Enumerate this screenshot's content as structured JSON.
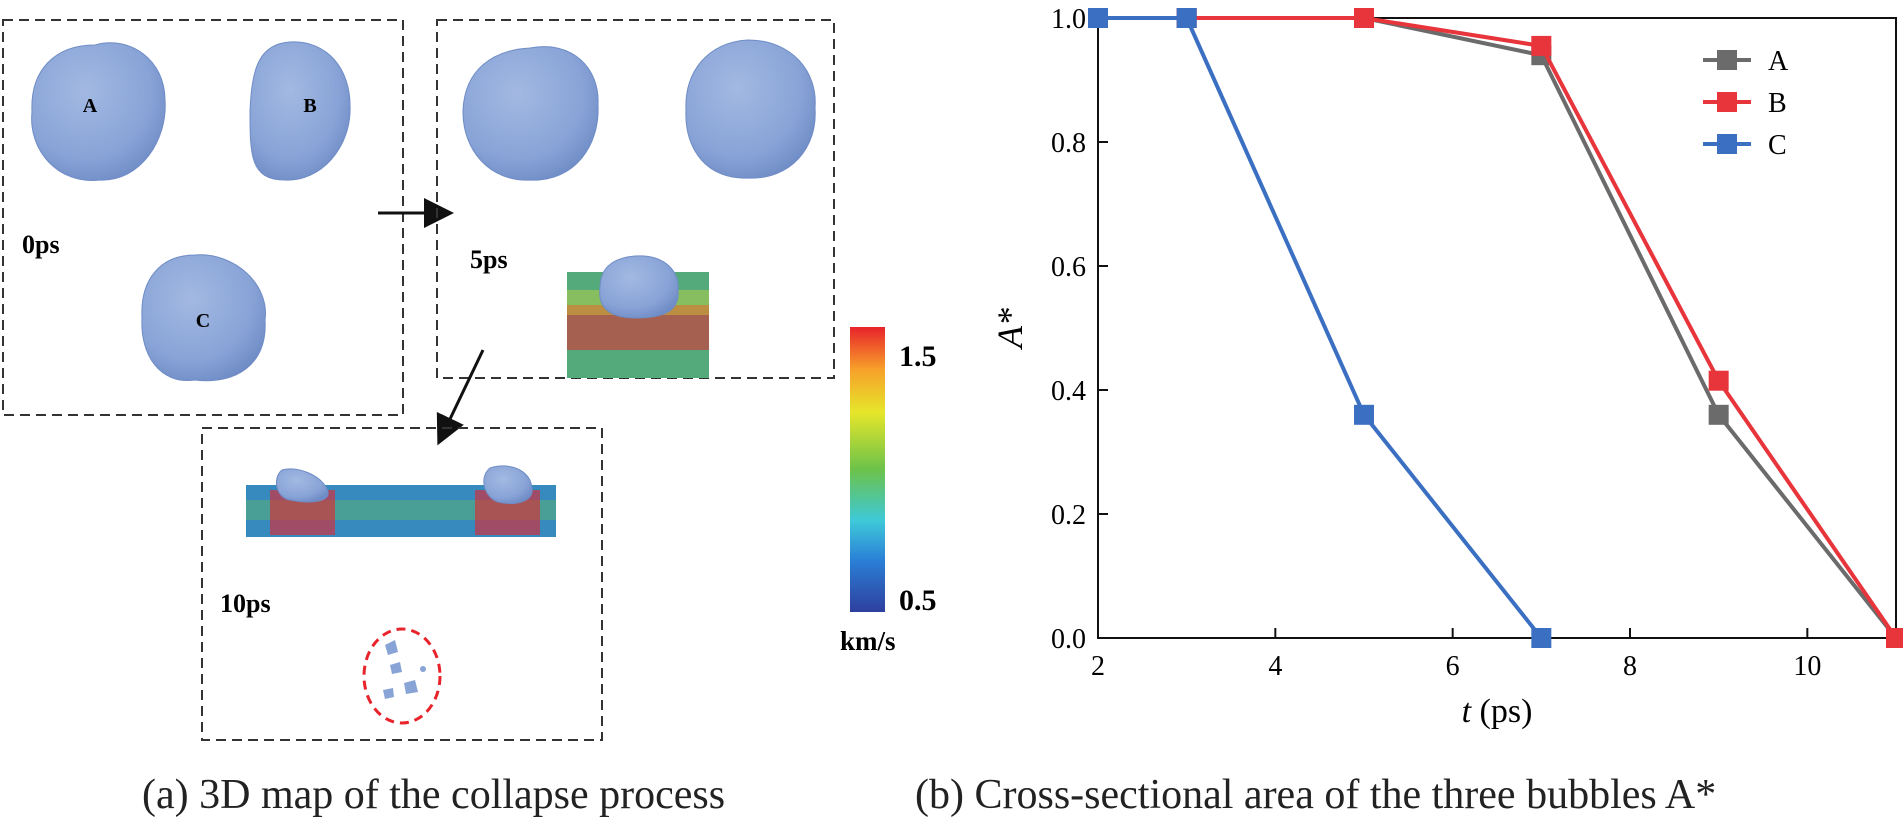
{
  "panel_a": {
    "snapshots": [
      {
        "time": "0ps",
        "bubbles": [
          "A",
          "B",
          "C"
        ]
      },
      {
        "time": "5ps"
      },
      {
        "time": "10ps"
      }
    ],
    "colorbar": {
      "max": "1.5",
      "min": "0.5",
      "unit": "km/s",
      "colors": [
        "#2e3f9e",
        "#2a7fd6",
        "#3ec9d9",
        "#6cc24a",
        "#e6e62a",
        "#f7a12a",
        "#e8232b"
      ]
    },
    "caption": "(a) 3D map of the collapse process",
    "bubble_color": "#88a3d6",
    "highlight_color": "#e8232b"
  },
  "panel_b": {
    "caption": "(b) Cross-sectional area of the three bubbles A*",
    "chart_data": {
      "type": "line",
      "xlabel_italic": "t",
      "xlabel_unit": " (ps)",
      "ylabel": "A*",
      "xlim": [
        2,
        11
      ],
      "ylim": [
        0,
        1.0
      ],
      "xticks": [
        2,
        4,
        6,
        8,
        10
      ],
      "yticks": [
        0.0,
        0.2,
        0.4,
        0.6,
        0.8,
        1.0
      ],
      "ytick_labels": [
        "0.0",
        "0.2",
        "0.4",
        "0.6",
        "0.8",
        "1.0"
      ],
      "legend_position": "top-right",
      "series": [
        {
          "name": "A",
          "color": "#6b6b6b",
          "x": [
            2,
            3,
            5,
            7,
            9,
            11
          ],
          "y": [
            1.0,
            1.0,
            1.0,
            0.94,
            0.36,
            0.0
          ]
        },
        {
          "name": "B",
          "color": "#e8343b",
          "x": [
            2,
            3,
            5,
            7,
            9,
            11
          ],
          "y": [
            1.0,
            1.0,
            1.0,
            0.955,
            0.415,
            0.0
          ]
        },
        {
          "name": "C",
          "color": "#3b6fc2",
          "x": [
            2,
            3,
            5,
            7
          ],
          "y": [
            1.0,
            1.0,
            0.36,
            0.0
          ]
        }
      ]
    }
  }
}
